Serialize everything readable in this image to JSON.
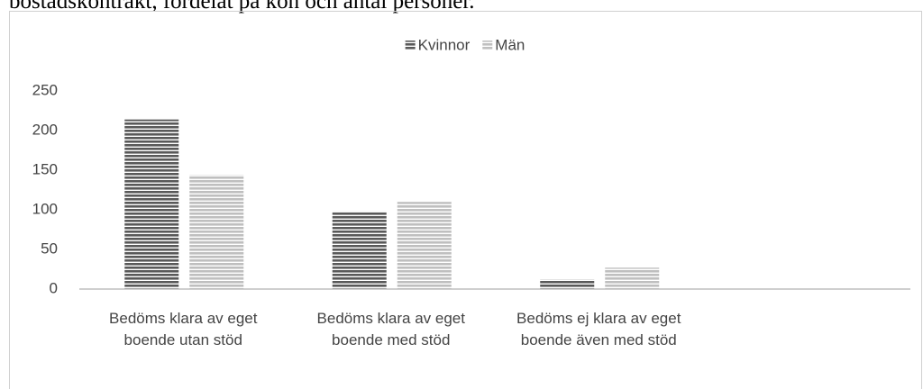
{
  "caption": "bostadskontrakt, fördelat på kön och antal personer.",
  "chart_data": {
    "type": "bar",
    "categories": [
      "Bedöms klara av eget boende utan stöd",
      "Bedöms klara av eget boende med stöd",
      "Bedöms ej klara av eget boende även med stöd",
      null
    ],
    "series": [
      {
        "name": "Kvinnor",
        "color": "#595959",
        "values": [
          214,
          98,
          12,
          null
        ]
      },
      {
        "name": "Män",
        "color": "#bfbfbf",
        "values": [
          144,
          110,
          27,
          null
        ]
      }
    ],
    "ylim": [
      0,
      250
    ],
    "yticks": [
      0,
      50,
      100,
      150,
      200,
      250
    ],
    "legend": "top",
    "grid": false
  }
}
